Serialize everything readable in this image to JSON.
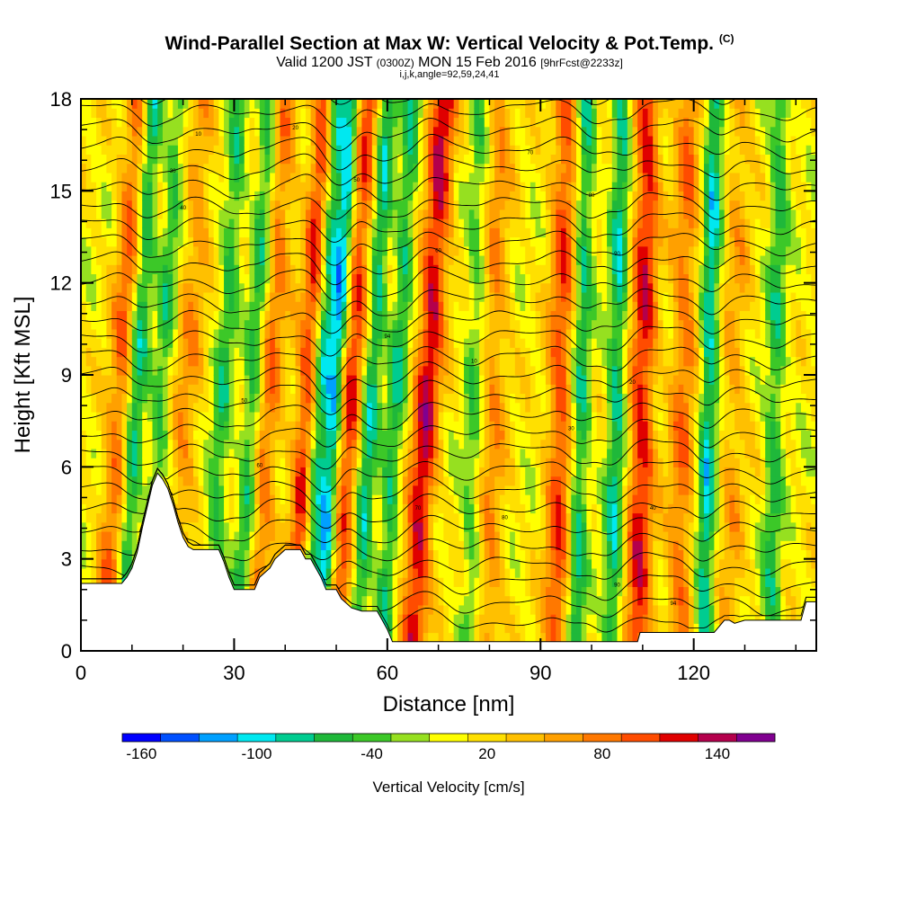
{
  "chart_data": {
    "type": "heatmap",
    "title": "Wind-Parallel Section at Max W: Vertical Velocity & Pot.Temp.",
    "title_mark": "(C)",
    "subtitle": {
      "valid": "Valid 1200 JST",
      "utc": "(0300Z)",
      "date": "MON 15 Feb 2016",
      "forecast": "[9hrFcst@2233z]"
    },
    "info": "i,j,k,angle=92,59,24,41",
    "xlabel": "Distance [nm]",
    "ylabel": "Height [Kft MSL]",
    "xlim": [
      0,
      144
    ],
    "ylim": [
      0,
      18
    ],
    "x_ticks": [
      0,
      30,
      60,
      90,
      120
    ],
    "y_ticks": [
      0,
      3,
      6,
      9,
      12,
      15,
      18
    ],
    "colorbar": {
      "label": "Vertical Velocity [cm/s]",
      "range": [
        -170,
        170
      ],
      "tick_values": [
        -160,
        -100,
        -40,
        20,
        80,
        140
      ],
      "colors": [
        "#0000ff",
        "#0050ff",
        "#00a0ff",
        "#00e8f0",
        "#00cc90",
        "#1fb83a",
        "#3cc828",
        "#96e020",
        "#ffff00",
        "#ffe000",
        "#ffc000",
        "#ffa000",
        "#ff7800",
        "#ff4c00",
        "#e00000",
        "#b4004c",
        "#800090"
      ]
    },
    "updraft_bands": [
      [
        8,
        0.65
      ],
      [
        21,
        0.45
      ],
      [
        37,
        0.6
      ],
      [
        45,
        0.95
      ],
      [
        53,
        0.85
      ],
      [
        68,
        1.0
      ],
      [
        81,
        0.45
      ],
      [
        94,
        0.75
      ],
      [
        110,
        0.9
      ],
      [
        118,
        0.6
      ],
      [
        128,
        0.35
      ]
    ],
    "downdraft_bands": [
      [
        11,
        -0.7
      ],
      [
        16,
        -0.45
      ],
      [
        28,
        -0.5
      ],
      [
        34,
        -0.6
      ],
      [
        47,
        -0.9
      ],
      [
        50,
        -1.0
      ],
      [
        57,
        -0.7
      ],
      [
        62,
        -0.55
      ],
      [
        77,
        -0.35
      ],
      [
        98,
        -0.6
      ],
      [
        105,
        -0.65
      ],
      [
        123,
        -0.75
      ],
      [
        136,
        -0.5
      ]
    ],
    "terrain_profile": [
      [
        0,
        2.2
      ],
      [
        8,
        2.2
      ],
      [
        9,
        2.4
      ],
      [
        10,
        2.7
      ],
      [
        11,
        3.2
      ],
      [
        12,
        4.0
      ],
      [
        13,
        4.7
      ],
      [
        14,
        5.4
      ],
      [
        15,
        5.8
      ],
      [
        16,
        5.6
      ],
      [
        17,
        5.3
      ],
      [
        18,
        4.8
      ],
      [
        19,
        4.2
      ],
      [
        20,
        3.7
      ],
      [
        21,
        3.4
      ],
      [
        22,
        3.3
      ],
      [
        27,
        3.3
      ],
      [
        28,
        2.9
      ],
      [
        29,
        2.4
      ],
      [
        30,
        2.0
      ],
      [
        34,
        2.0
      ],
      [
        35,
        2.4
      ],
      [
        37,
        2.7
      ],
      [
        38,
        3.0
      ],
      [
        40,
        3.3
      ],
      [
        43,
        3.3
      ],
      [
        44,
        3.0
      ],
      [
        45,
        3.0
      ],
      [
        46,
        2.7
      ],
      [
        47,
        2.4
      ],
      [
        48,
        2.0
      ],
      [
        50,
        2.0
      ],
      [
        51,
        1.7
      ],
      [
        53,
        1.4
      ],
      [
        55,
        1.3
      ],
      [
        58,
        1.3
      ],
      [
        59,
        1.0
      ],
      [
        60,
        0.7
      ],
      [
        61,
        0.3
      ],
      [
        109,
        0.3
      ],
      [
        109.5,
        0.6
      ],
      [
        124,
        0.6
      ],
      [
        126,
        1.0
      ],
      [
        127,
        1.0
      ],
      [
        128,
        0.9
      ],
      [
        130,
        1.0
      ],
      [
        141,
        1.0
      ],
      [
        142,
        1.6
      ],
      [
        144,
        1.6
      ]
    ],
    "isentrope_labels": [
      "10",
      "20",
      "30",
      "40",
      "50",
      "60",
      "70",
      "80",
      "90",
      "94"
    ]
  }
}
